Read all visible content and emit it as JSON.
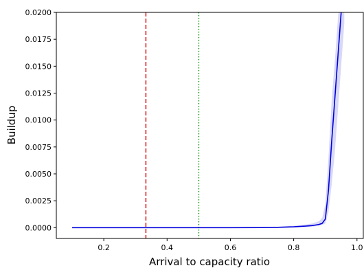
{
  "chart_data": {
    "type": "line",
    "title": "",
    "xlabel": "Arrival to capacity ratio",
    "ylabel": "Buildup",
    "xlim": [
      0.05,
      1.02
    ],
    "ylim": [
      -0.001,
      0.02
    ],
    "xticks": [
      0.2,
      0.4,
      0.6,
      0.8,
      1.0
    ],
    "xtick_labels": [
      "0.2",
      "0.4",
      "0.6",
      "0.8",
      "1.0"
    ],
    "yticks": [
      0.0,
      0.0025,
      0.005,
      0.0075,
      0.01,
      0.0125,
      0.015,
      0.0175,
      0.02
    ],
    "ytick_labels": [
      "0.0000",
      "0.0025",
      "0.0050",
      "0.0075",
      "0.0100",
      "0.0125",
      "0.0150",
      "0.0175",
      "0.0200"
    ],
    "grid": false,
    "series": [
      {
        "color": "#0000dd",
        "band_color": "#c8c8f5",
        "x": [
          0.1,
          0.2,
          0.3,
          0.4,
          0.5,
          0.6,
          0.7,
          0.75,
          0.8,
          0.84,
          0.86,
          0.88,
          0.89,
          0.9,
          0.91,
          0.92,
          0.93,
          0.94,
          0.95,
          0.96
        ],
        "y": [
          0.0,
          0.0,
          0.0,
          0.0,
          0.0,
          0.0,
          1e-05,
          3e-05,
          8e-05,
          0.00015,
          0.0002,
          0.0003,
          0.0004,
          0.0008,
          0.0035,
          0.008,
          0.012,
          0.016,
          0.02,
          0.024
        ],
        "y_lower": [
          0.0,
          0.0,
          0.0,
          0.0,
          0.0,
          0.0,
          0.0,
          0.0,
          3e-05,
          7e-05,
          0.0001,
          0.00018,
          0.00025,
          0.0004,
          0.0015,
          0.004,
          0.007,
          0.011,
          0.015,
          0.019
        ],
        "y_upper": [
          0.0,
          0.0,
          0.0,
          0.0,
          0.0,
          0.0,
          3e-05,
          8e-05,
          0.00018,
          0.0003,
          0.0004,
          0.0006,
          0.0009,
          0.0022,
          0.0065,
          0.0118,
          0.0155,
          0.0195,
          0.0235,
          0.028
        ]
      }
    ],
    "vlines": [
      {
        "x": 0.333,
        "color": "#d62728",
        "style": "dashed"
      },
      {
        "x": 0.5,
        "color": "#2ca02c",
        "style": "dotted"
      }
    ]
  }
}
